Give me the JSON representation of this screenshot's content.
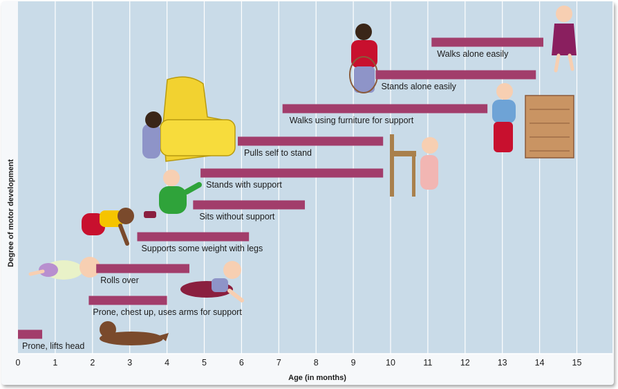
{
  "chart_data": {
    "type": "bar",
    "orientation": "horizontal-range",
    "xlabel": "Age (in months)",
    "ylabel": "Degree of motor development",
    "xlim": [
      0,
      15.5
    ],
    "xticks": [
      0,
      1,
      2,
      3,
      4,
      5,
      6,
      7,
      8,
      9,
      10,
      11,
      12,
      13,
      14,
      15
    ],
    "grid": "vertical",
    "series_color": "#a23d6b",
    "background_color": "#c9dbe8",
    "milestones": [
      {
        "label": "Prone, lifts head",
        "start": 0.0,
        "end": 0.65
      },
      {
        "label": "Prone, chest up, uses arms for support",
        "start": 1.9,
        "end": 4.0
      },
      {
        "label": "Rolls over",
        "start": 2.1,
        "end": 4.6
      },
      {
        "label": "Supports some weight with legs",
        "start": 3.2,
        "end": 6.2
      },
      {
        "label": "Sits without support",
        "start": 4.7,
        "end": 7.7
      },
      {
        "label": "Stands with support",
        "start": 4.9,
        "end": 9.8
      },
      {
        "label": "Pulls self to stand",
        "start": 5.9,
        "end": 9.8
      },
      {
        "label": "Walks using furniture for support",
        "start": 7.1,
        "end": 12.6
      },
      {
        "label": "Stands alone easily",
        "start": 9.6,
        "end": 13.9
      },
      {
        "label": "Walks alone easily",
        "start": 11.1,
        "end": 14.1
      }
    ]
  },
  "illustrations": [
    "infant-prone-lifting-head",
    "infant-prone-chest-up",
    "infant-rolling-over",
    "infant-supporting-weight-crawling",
    "infant-sitting",
    "infant-at-armchair",
    "toddler-with-chair",
    "toddler-holding-hoop",
    "toddler-at-dresser",
    "toddler-walking"
  ]
}
